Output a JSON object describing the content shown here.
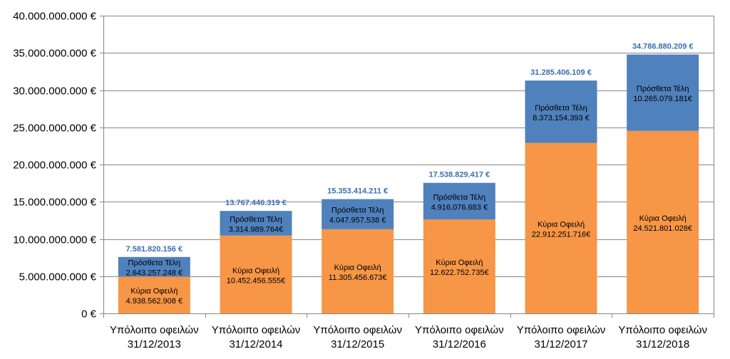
{
  "chart_data": {
    "type": "bar",
    "stacked": true,
    "categories": [
      [
        "Υπόλοιπο οφειλών",
        "31/12/2013"
      ],
      [
        "Υπόλοιπο οφειλών",
        "31/12/2014"
      ],
      [
        "Υπόλοιπο οφειλών",
        "31/12/2015"
      ],
      [
        "Υπόλοιπο οφειλών",
        "31/12/2016"
      ],
      [
        "Υπόλοιπο οφειλών",
        "31/12/2017"
      ],
      [
        "Υπόλοιπο οφειλών",
        "31/12/2018"
      ]
    ],
    "series": [
      {
        "name": "Κύρια Οφειλή",
        "color": "#f79646",
        "values": [
          4938562908,
          10452456555,
          11305456673,
          12622752735,
          22912251716,
          24521801028
        ],
        "labels": [
          "4.938.562.908 €",
          "10.452.456.555€",
          "11.305.456.673€",
          "12.622.752.735€",
          "22.912.251.716€",
          "24.521.801.028€"
        ]
      },
      {
        "name": "Πρόσθετα Τέλη",
        "color": "#4f81bd",
        "values": [
          2643257248,
          3314989764,
          4047957538,
          4916076683,
          8373154393,
          10265079181
        ],
        "labels": [
          "2.643.257.248 €",
          "3.314.989.764€",
          "4.047.957.538 €",
          "4.916.076.683 €",
          "8.373.154.393 €",
          "10.265.079.181€"
        ]
      }
    ],
    "totals": [
      7581820156,
      13767446319,
      15353414211,
      17538829417,
      31285406109,
      34786880209
    ],
    "total_labels": [
      "7.581.820.156 €",
      "13.767.446.319 €",
      "15.353.414.211 €",
      "17.538.829.417 €",
      "31.285.406.109 €",
      "34.786.880.209 €"
    ],
    "total_label_color": "#3b6fb0",
    "ylim": [
      0,
      40000000000
    ],
    "yticks": [
      {
        "value": 0,
        "label": "0 €"
      },
      {
        "value": 5000000000,
        "label": "5.000.000.000 €"
      },
      {
        "value": 10000000000,
        "label": "10.000.000.000 €"
      },
      {
        "value": 15000000000,
        "label": "15.000.000.000 €"
      },
      {
        "value": 20000000000,
        "label": "20.000.000.000 €"
      },
      {
        "value": 25000000000,
        "label": "25.000.000.000 €"
      },
      {
        "value": 30000000000,
        "label": "30.000.000.000 €"
      },
      {
        "value": 35000000000,
        "label": "35.000.000.000 €"
      },
      {
        "value": 40000000000,
        "label": "40.000.000.000 €"
      }
    ],
    "grid": true,
    "legend": "none",
    "title": "",
    "xlabel": "",
    "ylabel": ""
  }
}
